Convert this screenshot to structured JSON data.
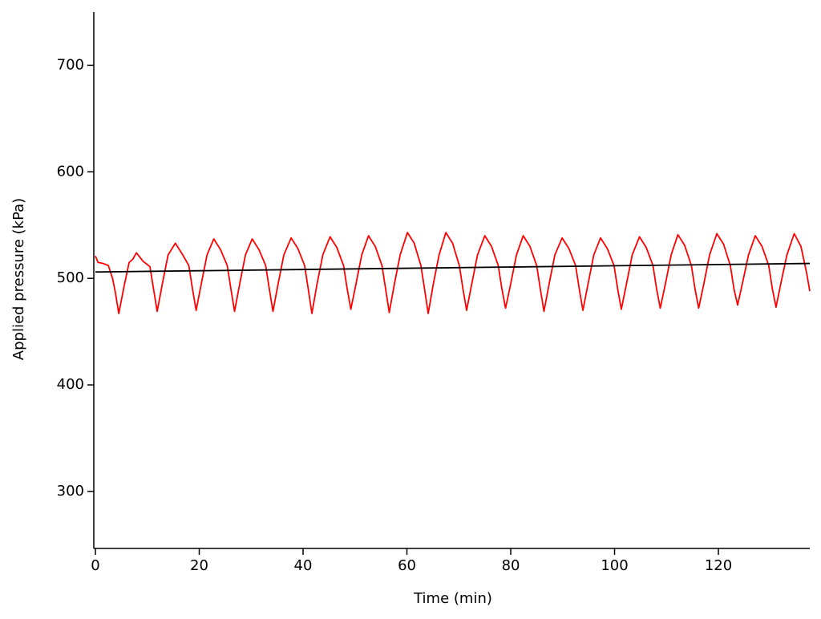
{
  "chart_data": {
    "type": "line",
    "xlabel": "Time (min)",
    "ylabel": "Applied pressure (kPa)",
    "xlim": [
      0,
      137.6
    ],
    "ylim": [
      248,
      750
    ],
    "xticks": [
      0,
      20,
      40,
      60,
      80,
      100,
      120
    ],
    "yticks": [
      300,
      400,
      500,
      600,
      700
    ],
    "grid": false,
    "series": [
      {
        "color": "#ff0000",
        "x": [
          0,
          0.5,
          1.5,
          2.5,
          3.3,
          3.8,
          4.5,
          5.5,
          6.5,
          7.2,
          7.9,
          9.2,
          10.5,
          11.2,
          11.9,
          12.9,
          14.0,
          15.4,
          16.7,
          18.0,
          18.7,
          19.4,
          20.4,
          21.5,
          22.8,
          24.1,
          25.4,
          26.1,
          26.8,
          27.8,
          28.9,
          30.2,
          31.5,
          32.8,
          33.5,
          34.2,
          35.2,
          36.3,
          37.7,
          39.0,
          40.3,
          41.0,
          41.7,
          42.7,
          43.8,
          45.2,
          46.5,
          47.8,
          48.5,
          49.2,
          50.2,
          51.3,
          52.6,
          53.9,
          55.2,
          55.9,
          56.6,
          57.6,
          58.7,
          60.1,
          61.4,
          62.7,
          63.4,
          64.1,
          65.1,
          66.2,
          67.5,
          68.8,
          70.1,
          70.8,
          71.5,
          72.5,
          73.6,
          75.0,
          76.3,
          77.6,
          78.3,
          79.0,
          80.0,
          81.1,
          82.4,
          83.7,
          85.0,
          85.7,
          86.4,
          87.4,
          88.5,
          89.9,
          91.2,
          92.5,
          93.2,
          93.9,
          94.9,
          96.0,
          97.3,
          98.6,
          99.9,
          100.6,
          101.3,
          102.3,
          103.4,
          104.8,
          106.1,
          107.4,
          108.1,
          108.8,
          109.8,
          110.9,
          112.2,
          113.5,
          114.8,
          115.5,
          116.2,
          117.2,
          118.3,
          119.7,
          121.0,
          122.3,
          123.0,
          123.7,
          124.7,
          125.8,
          127.1,
          128.4,
          129.7,
          130.4,
          131.1,
          132.1,
          133.2,
          134.6,
          135.9,
          137.0,
          137.6
        ],
        "values": [
          521,
          515,
          514,
          512,
          500,
          488,
          467,
          492,
          515,
          518,
          524,
          516,
          511,
          490,
          469,
          495,
          522,
          533,
          523,
          512,
          490,
          470,
          495,
          522,
          537,
          527,
          512,
          490,
          469,
          495,
          522,
          537,
          527,
          512,
          490,
          469,
          495,
          522,
          538,
          528,
          512,
          490,
          467,
          495,
          522,
          539,
          529,
          512,
          490,
          471,
          495,
          522,
          540,
          530,
          512,
          490,
          468,
          495,
          522,
          543,
          533,
          512,
          490,
          467,
          495,
          522,
          543,
          533,
          512,
          490,
          470,
          495,
          522,
          540,
          530,
          512,
          490,
          472,
          495,
          522,
          540,
          530,
          512,
          490,
          469,
          495,
          522,
          538,
          528,
          512,
          490,
          470,
          495,
          522,
          538,
          528,
          512,
          490,
          471,
          495,
          522,
          539,
          529,
          512,
          490,
          472,
          495,
          522,
          541,
          531,
          512,
          490,
          472,
          495,
          522,
          542,
          532,
          512,
          490,
          475,
          497,
          522,
          540,
          530,
          512,
          490,
          473,
          497,
          522,
          542,
          530,
          505,
          488
        ]
      },
      {
        "color": "#000000",
        "x": [
          0,
          137.6
        ],
        "values": [
          506,
          514
        ]
      }
    ]
  }
}
